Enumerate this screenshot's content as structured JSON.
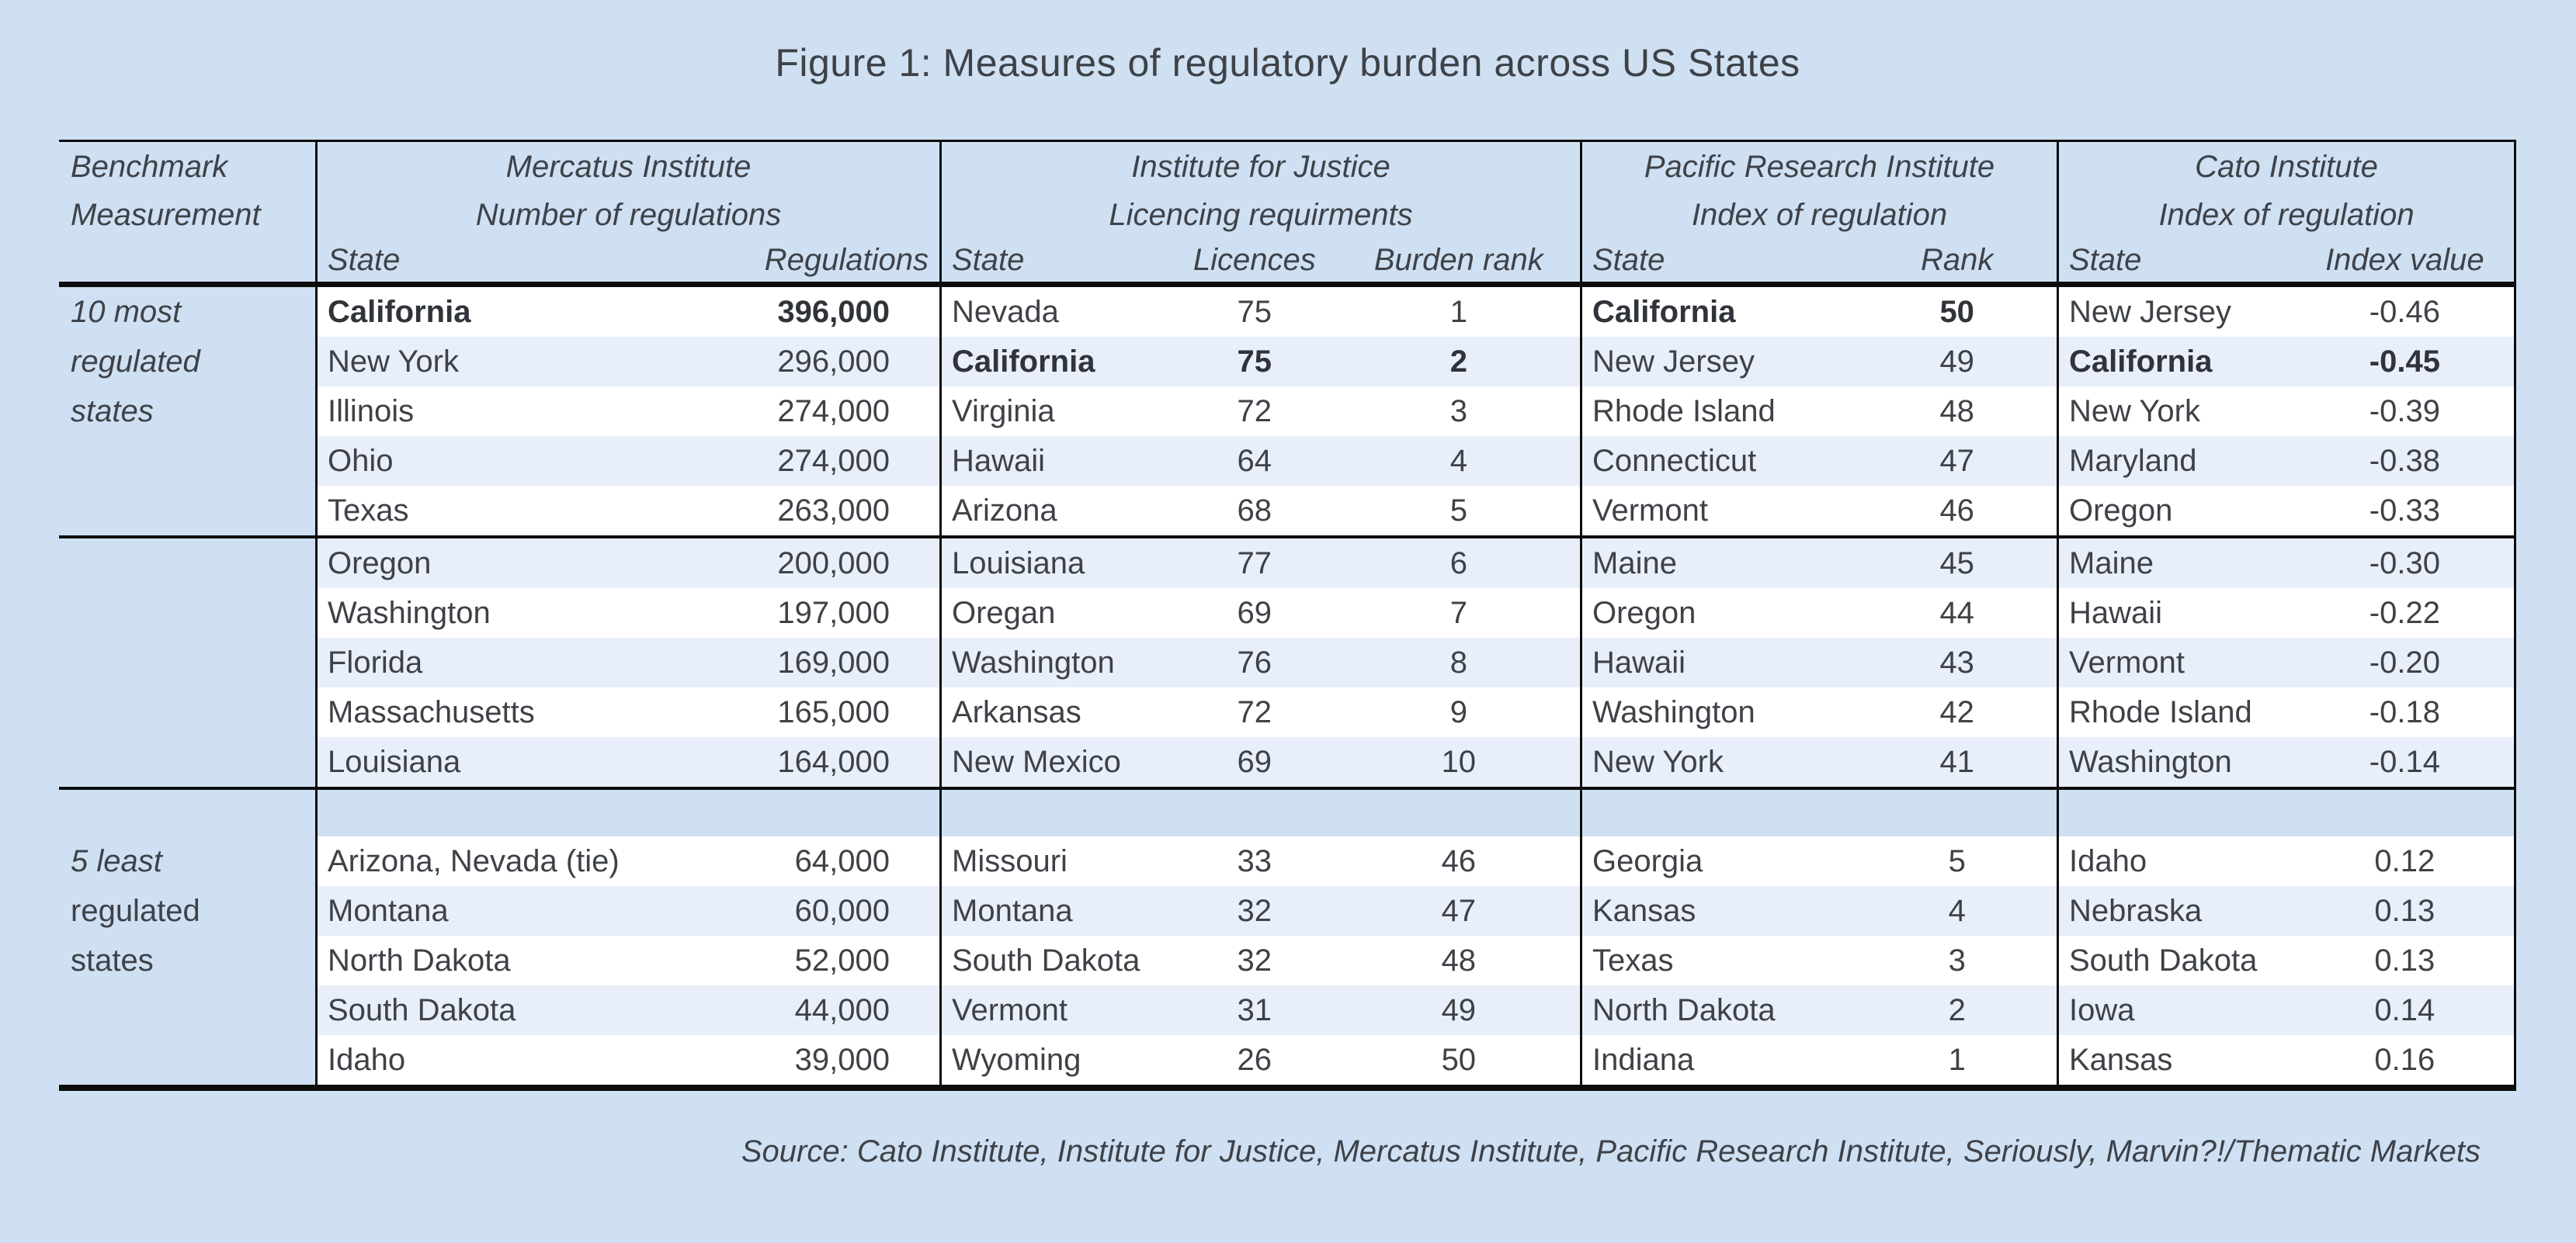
{
  "chart_data": {
    "type": "table",
    "title": "Figure 1: Measures of regulatory burden across US States",
    "benchmark_header_lines": [
      "Benchmark",
      "Measurement"
    ],
    "groups": [
      {
        "title": "Mercatus Institute",
        "subtitle": "Number of regulations",
        "columns": [
          "State",
          "Regulations"
        ]
      },
      {
        "title": "Institute for Justice",
        "subtitle": "Licencing requirments",
        "columns": [
          "State",
          "Licences",
          "Burden rank"
        ]
      },
      {
        "title": "Pacific Research Institute",
        "subtitle": "Index of regulation",
        "columns": [
          "State",
          "Rank"
        ]
      },
      {
        "title": "Cato Institute",
        "subtitle": "Index of regulation",
        "columns": [
          "State",
          "Index value"
        ]
      }
    ],
    "sections": [
      {
        "label_lines": [
          "10 most",
          "regulated",
          "states"
        ],
        "rows": [
          {
            "m_state": "California",
            "m_reg": "396,000",
            "m_bold": true,
            "j_state": "Nevada",
            "j_lic": "75",
            "j_rank": "1",
            "p_state": "California",
            "p_rank": "50",
            "p_bold": true,
            "c_state": "New Jersey",
            "c_idx": "-0.46"
          },
          {
            "m_state": "New York",
            "m_reg": "296,000",
            "j_state": "California",
            "j_lic": "75",
            "j_rank": "2",
            "j_bold": true,
            "p_state": "New Jersey",
            "p_rank": "49",
            "c_state": "California",
            "c_idx": "-0.45",
            "c_bold": true
          },
          {
            "m_state": "Illinois",
            "m_reg": "274,000",
            "j_state": "Virginia",
            "j_lic": "72",
            "j_rank": "3",
            "p_state": "Rhode Island",
            "p_rank": "48",
            "c_state": "New York",
            "c_idx": "-0.39"
          },
          {
            "m_state": "Ohio",
            "m_reg": "274,000",
            "j_state": "Hawaii",
            "j_lic": "64",
            "j_rank": "4",
            "p_state": "Connecticut",
            "p_rank": "47",
            "c_state": "Maryland",
            "c_idx": "-0.38"
          },
          {
            "m_state": "Texas",
            "m_reg": "263,000",
            "j_state": "Arizona",
            "j_lic": "68",
            "j_rank": "5",
            "p_state": "Vermont",
            "p_rank": "46",
            "c_state": "Oregon",
            "c_idx": "-0.33"
          },
          {
            "m_state": "Oregon",
            "m_reg": "200,000",
            "j_state": "Louisiana",
            "j_lic": "77",
            "j_rank": "6",
            "p_state": "Maine",
            "p_rank": "45",
            "c_state": "Maine",
            "c_idx": "-0.30"
          },
          {
            "m_state": "Washington",
            "m_reg": "197,000",
            "j_state": "Oregan",
            "j_lic": "69",
            "j_rank": "7",
            "p_state": "Oregon",
            "p_rank": "44",
            "c_state": "Hawaii",
            "c_idx": "-0.22"
          },
          {
            "m_state": "Florida",
            "m_reg": "169,000",
            "j_state": "Washington",
            "j_lic": "76",
            "j_rank": "8",
            "p_state": "Hawaii",
            "p_rank": "43",
            "c_state": "Vermont",
            "c_idx": "-0.20"
          },
          {
            "m_state": "Massachusetts",
            "m_reg": "165,000",
            "j_state": "Arkansas",
            "j_lic": "72",
            "j_rank": "9",
            "p_state": "Washington",
            "p_rank": "42",
            "c_state": "Rhode Island",
            "c_idx": "-0.18"
          },
          {
            "m_state": "Louisiana",
            "m_reg": "164,000",
            "j_state": "New Mexico",
            "j_lic": "69",
            "j_rank": "10",
            "p_state": "New York",
            "p_rank": "41",
            "c_state": "Washington",
            "c_idx": "-0.14"
          }
        ]
      },
      {
        "label_lines": [
          "5 least",
          "regulated",
          "states"
        ],
        "rows": [
          {
            "m_state": "Arizona, Nevada (tie)",
            "m_reg": "64,000",
            "j_state": "Missouri",
            "j_lic": "33",
            "j_rank": "46",
            "p_state": "Georgia",
            "p_rank": "5",
            "c_state": "Idaho",
            "c_idx": "0.12"
          },
          {
            "m_state": "Montana",
            "m_reg": "60,000",
            "j_state": "Montana",
            "j_lic": "32",
            "j_rank": "47",
            "p_state": "Kansas",
            "p_rank": "4",
            "c_state": "Nebraska",
            "c_idx": "0.13"
          },
          {
            "m_state": "North Dakota",
            "m_reg": "52,000",
            "j_state": "South Dakota",
            "j_lic": "32",
            "j_rank": "48",
            "p_state": "Texas",
            "p_rank": "3",
            "c_state": "South Dakota",
            "c_idx": "0.13"
          },
          {
            "m_state": "South Dakota",
            "m_reg": "44,000",
            "j_state": "Vermont",
            "j_lic": "31",
            "j_rank": "49",
            "p_state": "North Dakota",
            "p_rank": "2",
            "c_state": "Iowa",
            "c_idx": "0.14"
          },
          {
            "m_state": "Idaho",
            "m_reg": "39,000",
            "j_state": "Wyoming",
            "j_lic": "26",
            "j_rank": "50",
            "p_state": "Indiana",
            "p_rank": "1",
            "c_state": "Kansas",
            "c_idx": "0.16"
          }
        ]
      }
    ],
    "source": "Source: Cato Institute, Institute for Justice, Mercatus Institute, Pacific Research Institute, Seriously, Marvin?!/Thematic Markets"
  },
  "colors": {
    "page_background": "#cfe0f3",
    "row_stripe": "#e8effa",
    "text": "#3e4247",
    "line": "#0d0d0d"
  }
}
